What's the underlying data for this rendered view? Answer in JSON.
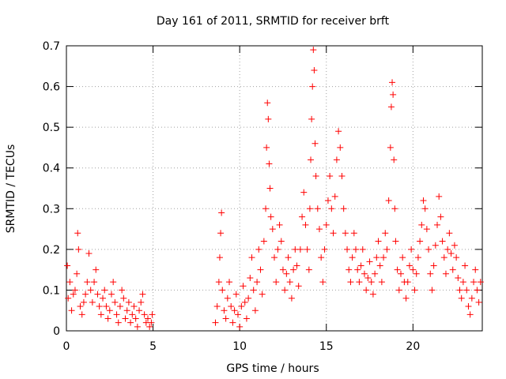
{
  "chart_data": {
    "type": "scatter",
    "title": "Day 161 of 2011, SRMTID for receiver brft",
    "xlabel": "GPS time / hours",
    "ylabel": "SRMTID / TECUs",
    "xlim": [
      0,
      24
    ],
    "ylim": [
      0,
      0.7
    ],
    "x_ticks": [
      0,
      5,
      10,
      15,
      20
    ],
    "y_ticks": [
      0,
      0.1,
      0.2,
      0.3,
      0.4,
      0.5,
      0.6,
      0.7
    ],
    "x_tick_labels": [
      "0",
      "5",
      "10",
      "15",
      "20"
    ],
    "y_tick_labels": [
      "0",
      "0.1",
      "0.2",
      "0.3",
      "0.4",
      "0.5",
      "0.6",
      "0.7"
    ],
    "grid": true,
    "marker": "plus",
    "color": "#ff0000",
    "series": [
      {
        "name": "SRMTID",
        "points": [
          [
            0.05,
            0.16
          ],
          [
            0.1,
            0.08
          ],
          [
            0.2,
            0.12
          ],
          [
            0.3,
            0.05
          ],
          [
            0.4,
            0.09
          ],
          [
            0.5,
            0.1
          ],
          [
            0.6,
            0.14
          ],
          [
            0.65,
            0.24
          ],
          [
            0.7,
            0.2
          ],
          [
            0.8,
            0.06
          ],
          [
            0.9,
            0.04
          ],
          [
            1.0,
            0.07
          ],
          [
            1.1,
            0.09
          ],
          [
            1.2,
            0.12
          ],
          [
            1.3,
            0.19
          ],
          [
            1.4,
            0.1
          ],
          [
            1.5,
            0.07
          ],
          [
            1.6,
            0.12
          ],
          [
            1.7,
            0.15
          ],
          [
            1.8,
            0.09
          ],
          [
            1.9,
            0.06
          ],
          [
            2.0,
            0.04
          ],
          [
            2.1,
            0.08
          ],
          [
            2.2,
            0.1
          ],
          [
            2.3,
            0.06
          ],
          [
            2.4,
            0.03
          ],
          [
            2.5,
            0.05
          ],
          [
            2.6,
            0.09
          ],
          [
            2.7,
            0.12
          ],
          [
            2.8,
            0.07
          ],
          [
            2.9,
            0.04
          ],
          [
            3.0,
            0.02
          ],
          [
            3.1,
            0.06
          ],
          [
            3.2,
            0.1
          ],
          [
            3.3,
            0.08
          ],
          [
            3.4,
            0.03
          ],
          [
            3.5,
            0.05
          ],
          [
            3.6,
            0.07
          ],
          [
            3.7,
            0.02
          ],
          [
            3.8,
            0.04
          ],
          [
            3.9,
            0.06
          ],
          [
            4.0,
            0.03
          ],
          [
            4.1,
            0.01
          ],
          [
            4.2,
            0.05
          ],
          [
            4.3,
            0.07
          ],
          [
            4.4,
            0.09
          ],
          [
            4.5,
            0.04
          ],
          [
            4.6,
            0.02
          ],
          [
            4.7,
            0.03
          ],
          [
            4.8,
            0.01
          ],
          [
            4.9,
            0.02
          ],
          [
            4.95,
            0.04
          ],
          [
            8.6,
            0.02
          ],
          [
            8.7,
            0.06
          ],
          [
            8.8,
            0.12
          ],
          [
            8.85,
            0.18
          ],
          [
            8.9,
            0.24
          ],
          [
            8.95,
            0.29
          ],
          [
            9.0,
            0.1
          ],
          [
            9.1,
            0.05
          ],
          [
            9.2,
            0.03
          ],
          [
            9.3,
            0.08
          ],
          [
            9.4,
            0.12
          ],
          [
            9.5,
            0.06
          ],
          [
            9.6,
            0.02
          ],
          [
            9.7,
            0.05
          ],
          [
            9.8,
            0.09
          ],
          [
            9.9,
            0.04
          ],
          [
            10.0,
            0.01
          ],
          [
            10.1,
            0.06
          ],
          [
            10.2,
            0.11
          ],
          [
            10.3,
            0.07
          ],
          [
            10.4,
            0.03
          ],
          [
            10.5,
            0.08
          ],
          [
            10.6,
            0.13
          ],
          [
            10.7,
            0.18
          ],
          [
            10.8,
            0.1
          ],
          [
            10.9,
            0.05
          ],
          [
            11.0,
            0.12
          ],
          [
            11.1,
            0.2
          ],
          [
            11.2,
            0.15
          ],
          [
            11.3,
            0.09
          ],
          [
            11.4,
            0.22
          ],
          [
            11.5,
            0.3
          ],
          [
            11.55,
            0.45
          ],
          [
            11.6,
            0.56
          ],
          [
            11.65,
            0.52
          ],
          [
            11.7,
            0.41
          ],
          [
            11.75,
            0.35
          ],
          [
            11.8,
            0.28
          ],
          [
            11.9,
            0.25
          ],
          [
            12.0,
            0.18
          ],
          [
            12.1,
            0.12
          ],
          [
            12.2,
            0.2
          ],
          [
            12.3,
            0.26
          ],
          [
            12.4,
            0.22
          ],
          [
            12.5,
            0.15
          ],
          [
            12.6,
            0.1
          ],
          [
            12.7,
            0.14
          ],
          [
            12.8,
            0.18
          ],
          [
            12.9,
            0.12
          ],
          [
            13.0,
            0.08
          ],
          [
            13.1,
            0.15
          ],
          [
            13.2,
            0.2
          ],
          [
            13.3,
            0.16
          ],
          [
            13.4,
            0.11
          ],
          [
            13.5,
            0.2
          ],
          [
            13.6,
            0.28
          ],
          [
            13.7,
            0.34
          ],
          [
            13.8,
            0.26
          ],
          [
            13.9,
            0.2
          ],
          [
            14.0,
            0.15
          ],
          [
            14.05,
            0.3
          ],
          [
            14.1,
            0.42
          ],
          [
            14.15,
            0.52
          ],
          [
            14.2,
            0.6
          ],
          [
            14.25,
            0.69
          ],
          [
            14.3,
            0.64
          ],
          [
            14.35,
            0.46
          ],
          [
            14.4,
            0.38
          ],
          [
            14.5,
            0.3
          ],
          [
            14.6,
            0.25
          ],
          [
            14.7,
            0.18
          ],
          [
            14.8,
            0.12
          ],
          [
            14.9,
            0.2
          ],
          [
            15.0,
            0.26
          ],
          [
            15.1,
            0.32
          ],
          [
            15.2,
            0.38
          ],
          [
            15.3,
            0.3
          ],
          [
            15.4,
            0.24
          ],
          [
            15.5,
            0.33
          ],
          [
            15.6,
            0.42
          ],
          [
            15.7,
            0.49
          ],
          [
            15.8,
            0.45
          ],
          [
            15.9,
            0.38
          ],
          [
            16.0,
            0.3
          ],
          [
            16.1,
            0.24
          ],
          [
            16.2,
            0.2
          ],
          [
            16.3,
            0.15
          ],
          [
            16.4,
            0.12
          ],
          [
            16.5,
            0.18
          ],
          [
            16.6,
            0.24
          ],
          [
            16.7,
            0.2
          ],
          [
            16.8,
            0.15
          ],
          [
            16.9,
            0.12
          ],
          [
            17.0,
            0.16
          ],
          [
            17.1,
            0.2
          ],
          [
            17.2,
            0.14
          ],
          [
            17.3,
            0.1
          ],
          [
            17.4,
            0.13
          ],
          [
            17.5,
            0.17
          ],
          [
            17.6,
            0.12
          ],
          [
            17.7,
            0.09
          ],
          [
            17.8,
            0.14
          ],
          [
            17.9,
            0.18
          ],
          [
            18.0,
            0.22
          ],
          [
            18.1,
            0.16
          ],
          [
            18.2,
            0.12
          ],
          [
            18.3,
            0.18
          ],
          [
            18.4,
            0.24
          ],
          [
            18.5,
            0.2
          ],
          [
            18.6,
            0.32
          ],
          [
            18.7,
            0.45
          ],
          [
            18.75,
            0.55
          ],
          [
            18.8,
            0.61
          ],
          [
            18.85,
            0.58
          ],
          [
            18.9,
            0.42
          ],
          [
            18.95,
            0.3
          ],
          [
            19.0,
            0.22
          ],
          [
            19.1,
            0.15
          ],
          [
            19.2,
            0.1
          ],
          [
            19.3,
            0.14
          ],
          [
            19.4,
            0.18
          ],
          [
            19.5,
            0.12
          ],
          [
            19.6,
            0.08
          ],
          [
            19.7,
            0.12
          ],
          [
            19.8,
            0.16
          ],
          [
            19.9,
            0.2
          ],
          [
            20.0,
            0.15
          ],
          [
            20.1,
            0.1
          ],
          [
            20.2,
            0.14
          ],
          [
            20.3,
            0.18
          ],
          [
            20.4,
            0.22
          ],
          [
            20.5,
            0.26
          ],
          [
            20.6,
            0.32
          ],
          [
            20.7,
            0.3
          ],
          [
            20.8,
            0.25
          ],
          [
            20.9,
            0.2
          ],
          [
            21.0,
            0.14
          ],
          [
            21.1,
            0.1
          ],
          [
            21.2,
            0.16
          ],
          [
            21.3,
            0.21
          ],
          [
            21.4,
            0.26
          ],
          [
            21.5,
            0.33
          ],
          [
            21.6,
            0.28
          ],
          [
            21.7,
            0.22
          ],
          [
            21.8,
            0.18
          ],
          [
            21.9,
            0.14
          ],
          [
            22.0,
            0.2
          ],
          [
            22.1,
            0.24
          ],
          [
            22.2,
            0.19
          ],
          [
            22.3,
            0.15
          ],
          [
            22.4,
            0.21
          ],
          [
            22.5,
            0.18
          ],
          [
            22.6,
            0.13
          ],
          [
            22.7,
            0.1
          ],
          [
            22.8,
            0.08
          ],
          [
            22.9,
            0.12
          ],
          [
            23.0,
            0.16
          ],
          [
            23.1,
            0.1
          ],
          [
            23.2,
            0.06
          ],
          [
            23.3,
            0.04
          ],
          [
            23.4,
            0.08
          ],
          [
            23.5,
            0.12
          ],
          [
            23.6,
            0.15
          ],
          [
            23.7,
            0.1
          ],
          [
            23.8,
            0.07
          ],
          [
            23.9,
            0.12
          ]
        ]
      }
    ]
  }
}
